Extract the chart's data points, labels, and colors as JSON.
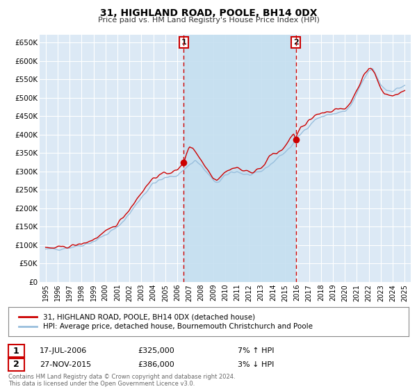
{
  "title": "31, HIGHLAND ROAD, POOLE, BH14 0DX",
  "subtitle": "Price paid vs. HM Land Registry's House Price Index (HPI)",
  "ylabel_ticks": [
    "£0",
    "£50K",
    "£100K",
    "£150K",
    "£200K",
    "£250K",
    "£300K",
    "£350K",
    "£400K",
    "£450K",
    "£500K",
    "£550K",
    "£600K",
    "£650K"
  ],
  "ytick_values": [
    0,
    50000,
    100000,
    150000,
    200000,
    250000,
    300000,
    350000,
    400000,
    450000,
    500000,
    550000,
    600000,
    650000
  ],
  "ylim": [
    0,
    670000
  ],
  "background_color": "#dce9f5",
  "shade_color": "#c5dff0",
  "grid_color": "#ffffff",
  "line1_color": "#cc0000",
  "line2_color": "#99bfdd",
  "marker1_color": "#cc0000",
  "marker2_color": "#cc0000",
  "box1_color": "#cc0000",
  "box2_color": "#cc0000",
  "sale1_x": 2006.54,
  "sale1_y": 325000,
  "sale2_x": 2015.9,
  "sale2_y": 386000,
  "legend_line1": "31, HIGHLAND ROAD, POOLE, BH14 0DX (detached house)",
  "legend_line2": "HPI: Average price, detached house, Bournemouth Christchurch and Poole",
  "annotation1_label": "1",
  "annotation1_date": "17-JUL-2006",
  "annotation1_price": "£325,000",
  "annotation1_hpi": "7% ↑ HPI",
  "annotation2_label": "2",
  "annotation2_date": "27-NOV-2015",
  "annotation2_price": "£386,000",
  "annotation2_hpi": "3% ↓ HPI",
  "footer": "Contains HM Land Registry data © Crown copyright and database right 2024.\nThis data is licensed under the Open Government Licence v3.0.",
  "xmin": 1994.5,
  "xmax": 2025.5
}
